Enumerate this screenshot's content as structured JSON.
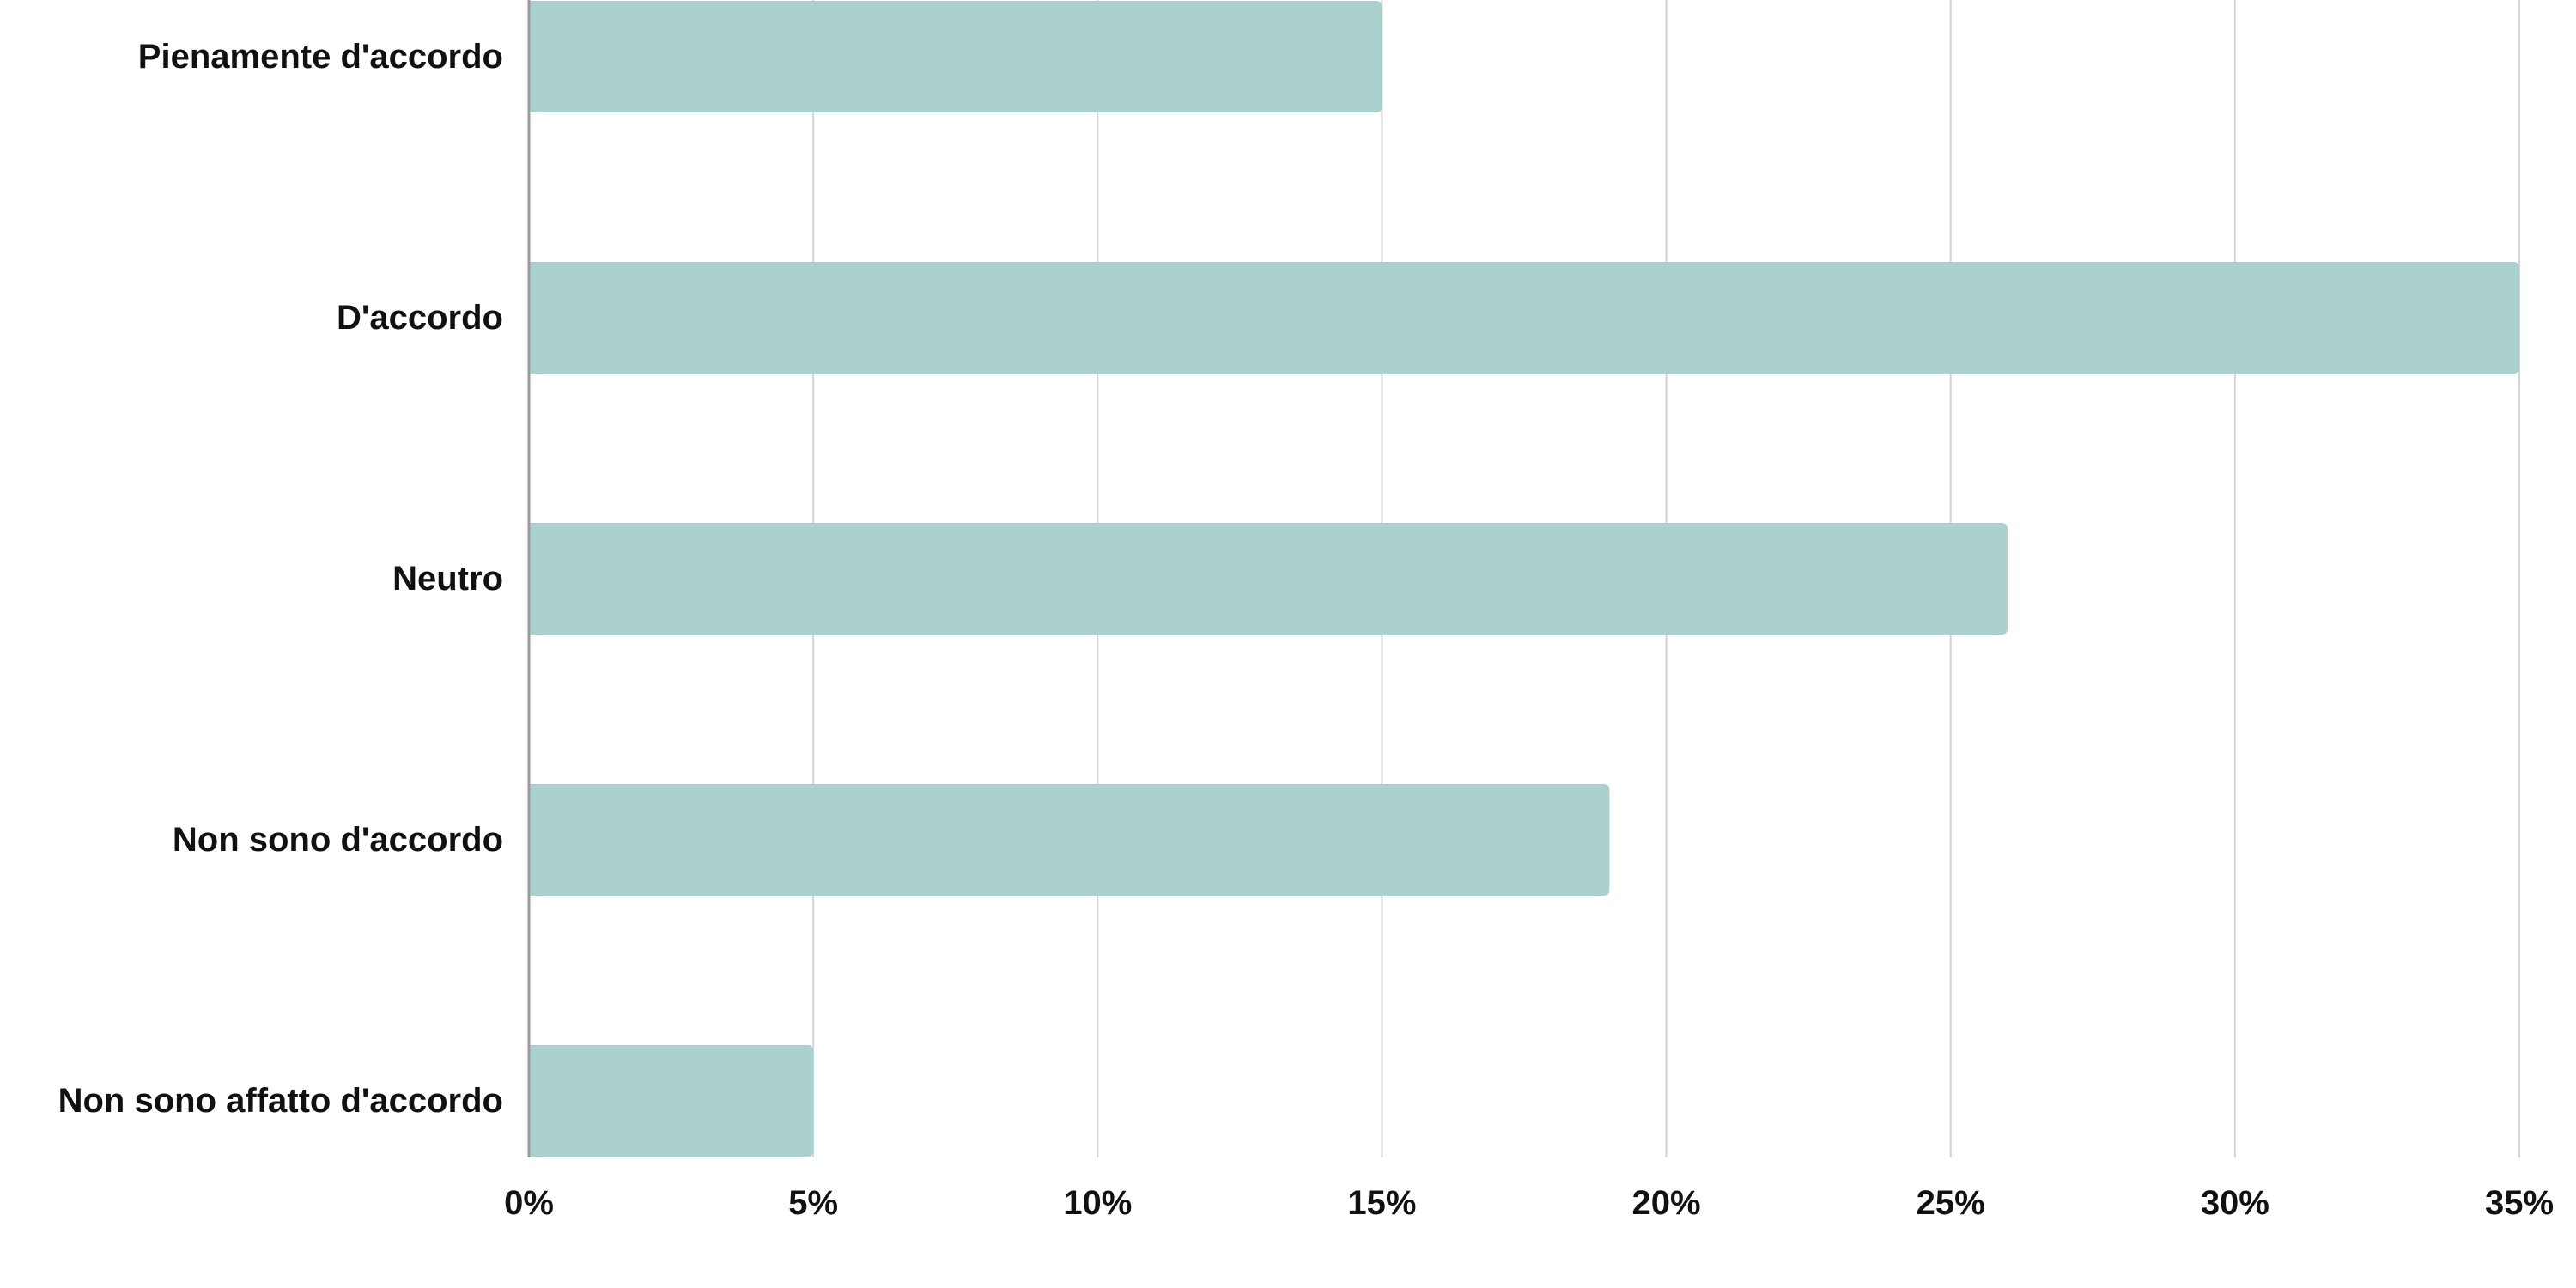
{
  "chart_data": {
    "type": "bar",
    "orientation": "horizontal",
    "categories": [
      "Pienamente d'accordo",
      "D'accordo",
      "Neutro",
      "Non sono d'accordo",
      "Non sono affatto d'accordo"
    ],
    "values": [
      15,
      35,
      26,
      19,
      5
    ],
    "unit": "%",
    "xlim": [
      0,
      35
    ],
    "xticks": [
      "0%",
      "5%",
      "10%",
      "15%",
      "20%",
      "25%",
      "30%",
      "35%"
    ],
    "grid": "vertical",
    "legend": "none",
    "bar_color": "#abd1ce"
  }
}
